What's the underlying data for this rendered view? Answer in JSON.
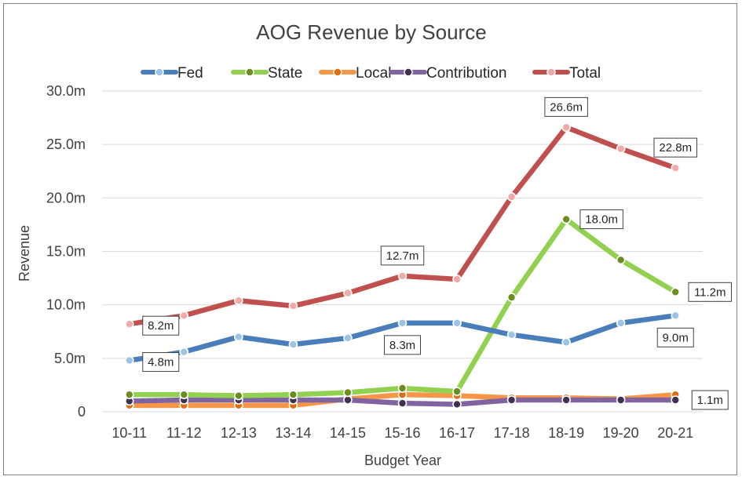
{
  "chart_data": {
    "type": "line",
    "title": "AOG Revenue by Source",
    "xlabel": "Budget Year",
    "ylabel": "Revenue",
    "categories": [
      "10-11",
      "11-12",
      "12-13",
      "13-14",
      "14-15",
      "15-16",
      "16-17",
      "17-18",
      "18-19",
      "19-20",
      "20-21"
    ],
    "ylim": [
      0,
      30
    ],
    "yticks": [
      "0",
      "5.0m",
      "10.0m",
      "15.0m",
      "20.0m",
      "25.0m",
      "30.0m"
    ],
    "grid": true,
    "legend_position": "top",
    "series": [
      {
        "name": "Fed",
        "color": "#4a7ebb",
        "marker": "#9dc3e6",
        "values": [
          4.8,
          5.6,
          7.0,
          6.3,
          6.9,
          8.3,
          8.3,
          7.2,
          6.5,
          8.3,
          9.0
        ]
      },
      {
        "name": "State",
        "color": "#92d050",
        "marker": "#6b8e23",
        "values": [
          1.6,
          1.6,
          1.5,
          1.6,
          1.8,
          2.2,
          1.9,
          10.7,
          18.0,
          14.2,
          11.2
        ]
      },
      {
        "name": "Local",
        "color": "#f79646",
        "marker": "#e46c0a",
        "values": [
          0.6,
          0.6,
          0.6,
          0.6,
          1.2,
          1.6,
          1.5,
          1.3,
          1.3,
          1.2,
          1.6
        ]
      },
      {
        "name": "Contribution",
        "color": "#8064a2",
        "marker": "#403151",
        "values": [
          1.0,
          1.1,
          1.1,
          1.1,
          1.1,
          0.8,
          0.7,
          1.1,
          1.1,
          1.1,
          1.1
        ]
      },
      {
        "name": "Total",
        "color": "#c0504d",
        "marker": "#f2a9a7",
        "values": [
          8.2,
          9.0,
          10.4,
          9.9,
          11.1,
          12.7,
          12.4,
          20.1,
          26.6,
          24.6,
          22.8
        ]
      }
    ],
    "data_labels": [
      {
        "series": 0,
        "index": 0,
        "text": "4.8m"
      },
      {
        "series": 0,
        "index": 5,
        "text": "8.3m"
      },
      {
        "series": 0,
        "index": 10,
        "text": "9.0m"
      },
      {
        "series": 1,
        "index": 8,
        "text": "18.0m"
      },
      {
        "series": 1,
        "index": 10,
        "text": "11.2m"
      },
      {
        "series": 3,
        "index": 10,
        "text": "1.1m"
      },
      {
        "series": 4,
        "index": 0,
        "text": "8.2m"
      },
      {
        "series": 4,
        "index": 5,
        "text": "12.7m"
      },
      {
        "series": 4,
        "index": 8,
        "text": "26.6m"
      },
      {
        "series": 4,
        "index": 10,
        "text": "22.8m"
      }
    ]
  }
}
